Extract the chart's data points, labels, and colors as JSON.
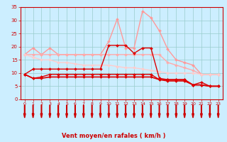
{
  "x": [
    0,
    1,
    2,
    3,
    4,
    5,
    6,
    7,
    8,
    9,
    10,
    11,
    12,
    13,
    14,
    15,
    16,
    17,
    18,
    19,
    20,
    21,
    22,
    23
  ],
  "series": [
    {
      "name": "light_pink_top",
      "color": "#ff9999",
      "linewidth": 1.0,
      "markersize": 2.0,
      "y": [
        17,
        19.5,
        17,
        19.5,
        17,
        17,
        17,
        17,
        17,
        17,
        22,
        30.5,
        19.5,
        19.5,
        33.5,
        31,
        26,
        19,
        15,
        14,
        13,
        9.5,
        9.5,
        9.5
      ]
    },
    {
      "name": "light_pink_mid",
      "color": "#ffaaaa",
      "linewidth": 1.0,
      "markersize": 2.0,
      "y": [
        17,
        17,
        17,
        17,
        17,
        17,
        17,
        17,
        17,
        17,
        17,
        17,
        17,
        17,
        17,
        17,
        17,
        14,
        13,
        12,
        11,
        9.5,
        9.5,
        9.5
      ]
    },
    {
      "name": "light_pink_low",
      "color": "#ffcccc",
      "linewidth": 1.0,
      "markersize": 2.0,
      "y": [
        17,
        16,
        15,
        15,
        14,
        14,
        13.5,
        13,
        13,
        13,
        13,
        12.5,
        12,
        12,
        11.5,
        11,
        10.5,
        10,
        10,
        10,
        10,
        9.5,
        9.5,
        9.5
      ]
    },
    {
      "name": "dark_red_top",
      "color": "#dd0000",
      "linewidth": 1.0,
      "markersize": 2.0,
      "y": [
        9.5,
        11.5,
        11.5,
        11.5,
        11.5,
        11.5,
        11.5,
        11.5,
        11.5,
        11.5,
        20.5,
        20.5,
        20.5,
        17.5,
        19.5,
        19.5,
        8,
        7.5,
        7.5,
        7.5,
        5.5,
        6.5,
        5,
        5
      ]
    },
    {
      "name": "dark_red_mid",
      "color": "#dd0000",
      "linewidth": 1.0,
      "markersize": 2.0,
      "y": [
        9.5,
        8,
        8.5,
        9.5,
        9.5,
        9.5,
        9.5,
        9.5,
        9.5,
        9.5,
        9.5,
        9.5,
        9.5,
        9.5,
        9.5,
        9.5,
        7.5,
        7.5,
        7.5,
        7.5,
        5.5,
        5.5,
        5,
        5
      ]
    },
    {
      "name": "dark_red_low",
      "color": "#dd0000",
      "linewidth": 1.2,
      "markersize": 2.0,
      "y": [
        9.5,
        8,
        8,
        8.5,
        8.5,
        8.5,
        8.5,
        8.5,
        8.5,
        8.5,
        8.5,
        8.5,
        8.5,
        8.5,
        8.5,
        8.5,
        7.5,
        7,
        7,
        7,
        5.5,
        5.5,
        5,
        5
      ]
    }
  ],
  "xlabel": "Vent moyen/en rafales ( km/h )",
  "ylim": [
    0,
    35
  ],
  "xlim": [
    -0.5,
    23.5
  ],
  "yticks": [
    0,
    5,
    10,
    15,
    20,
    25,
    30,
    35
  ],
  "xticks": [
    0,
    1,
    2,
    3,
    4,
    5,
    6,
    7,
    8,
    9,
    10,
    11,
    12,
    13,
    14,
    15,
    16,
    17,
    18,
    19,
    20,
    21,
    22,
    23
  ],
  "bg_color": "#cceeff",
  "grid_color": "#99cccc",
  "tick_color": "#cc0000",
  "label_color": "#cc0000",
  "arrow_color": "#cc0000"
}
